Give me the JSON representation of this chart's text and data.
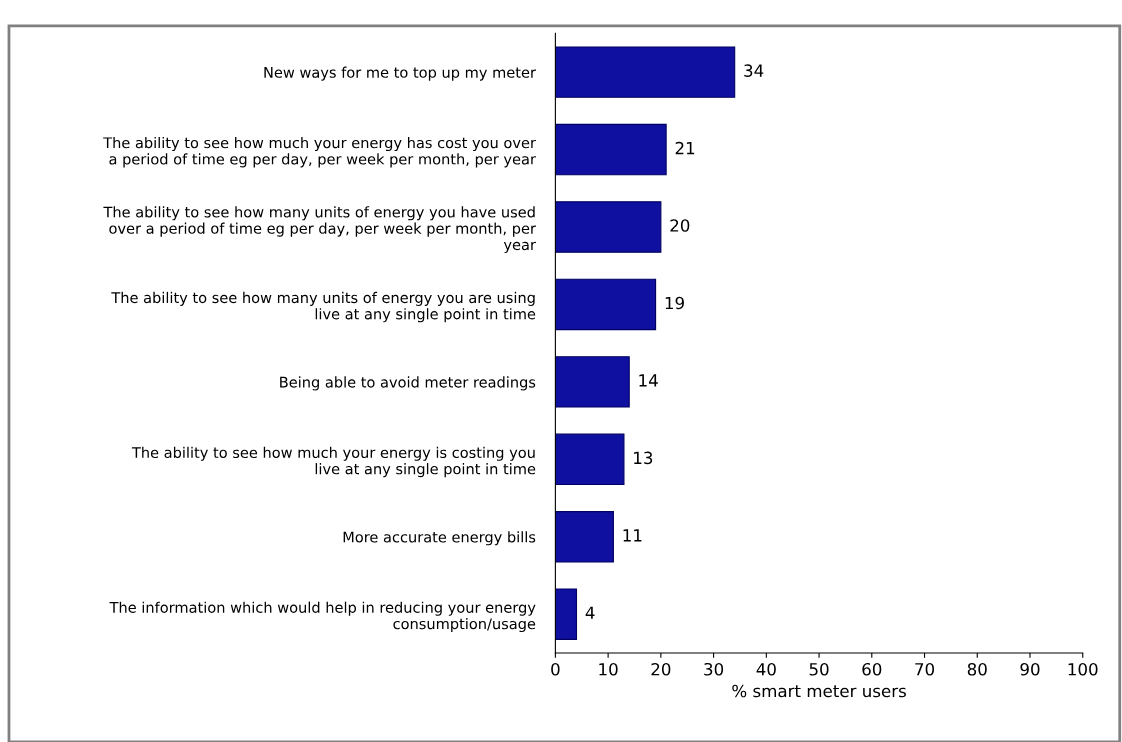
{
  "chart_data": {
    "type": "bar",
    "orientation": "horizontal",
    "categories": [
      "New ways for me to top up my meter",
      "The ability to see how much your energy has cost you over a period of time eg per day, per week per month, per year",
      "The ability to see how many units of energy you have used over a period of time eg per day, per week per month, per year",
      "The ability to see how many units of energy you are using live at any single point in time",
      "Being able to avoid meter readings",
      "The ability to see how much your energy is costing you live at any single point in time",
      "More accurate energy bills",
      "The information which would help in reducing your energy consumption/usage"
    ],
    "values": [
      34,
      21,
      20,
      19,
      14,
      13,
      11,
      4
    ],
    "color": "#1010a0",
    "data_labels": true,
    "xlabel": "% smart meter users",
    "xlim": [
      0,
      100
    ],
    "xticks": [
      0,
      10,
      20,
      30,
      40,
      50,
      60,
      70,
      80,
      90,
      100
    ],
    "grid": false,
    "legend": false
  }
}
